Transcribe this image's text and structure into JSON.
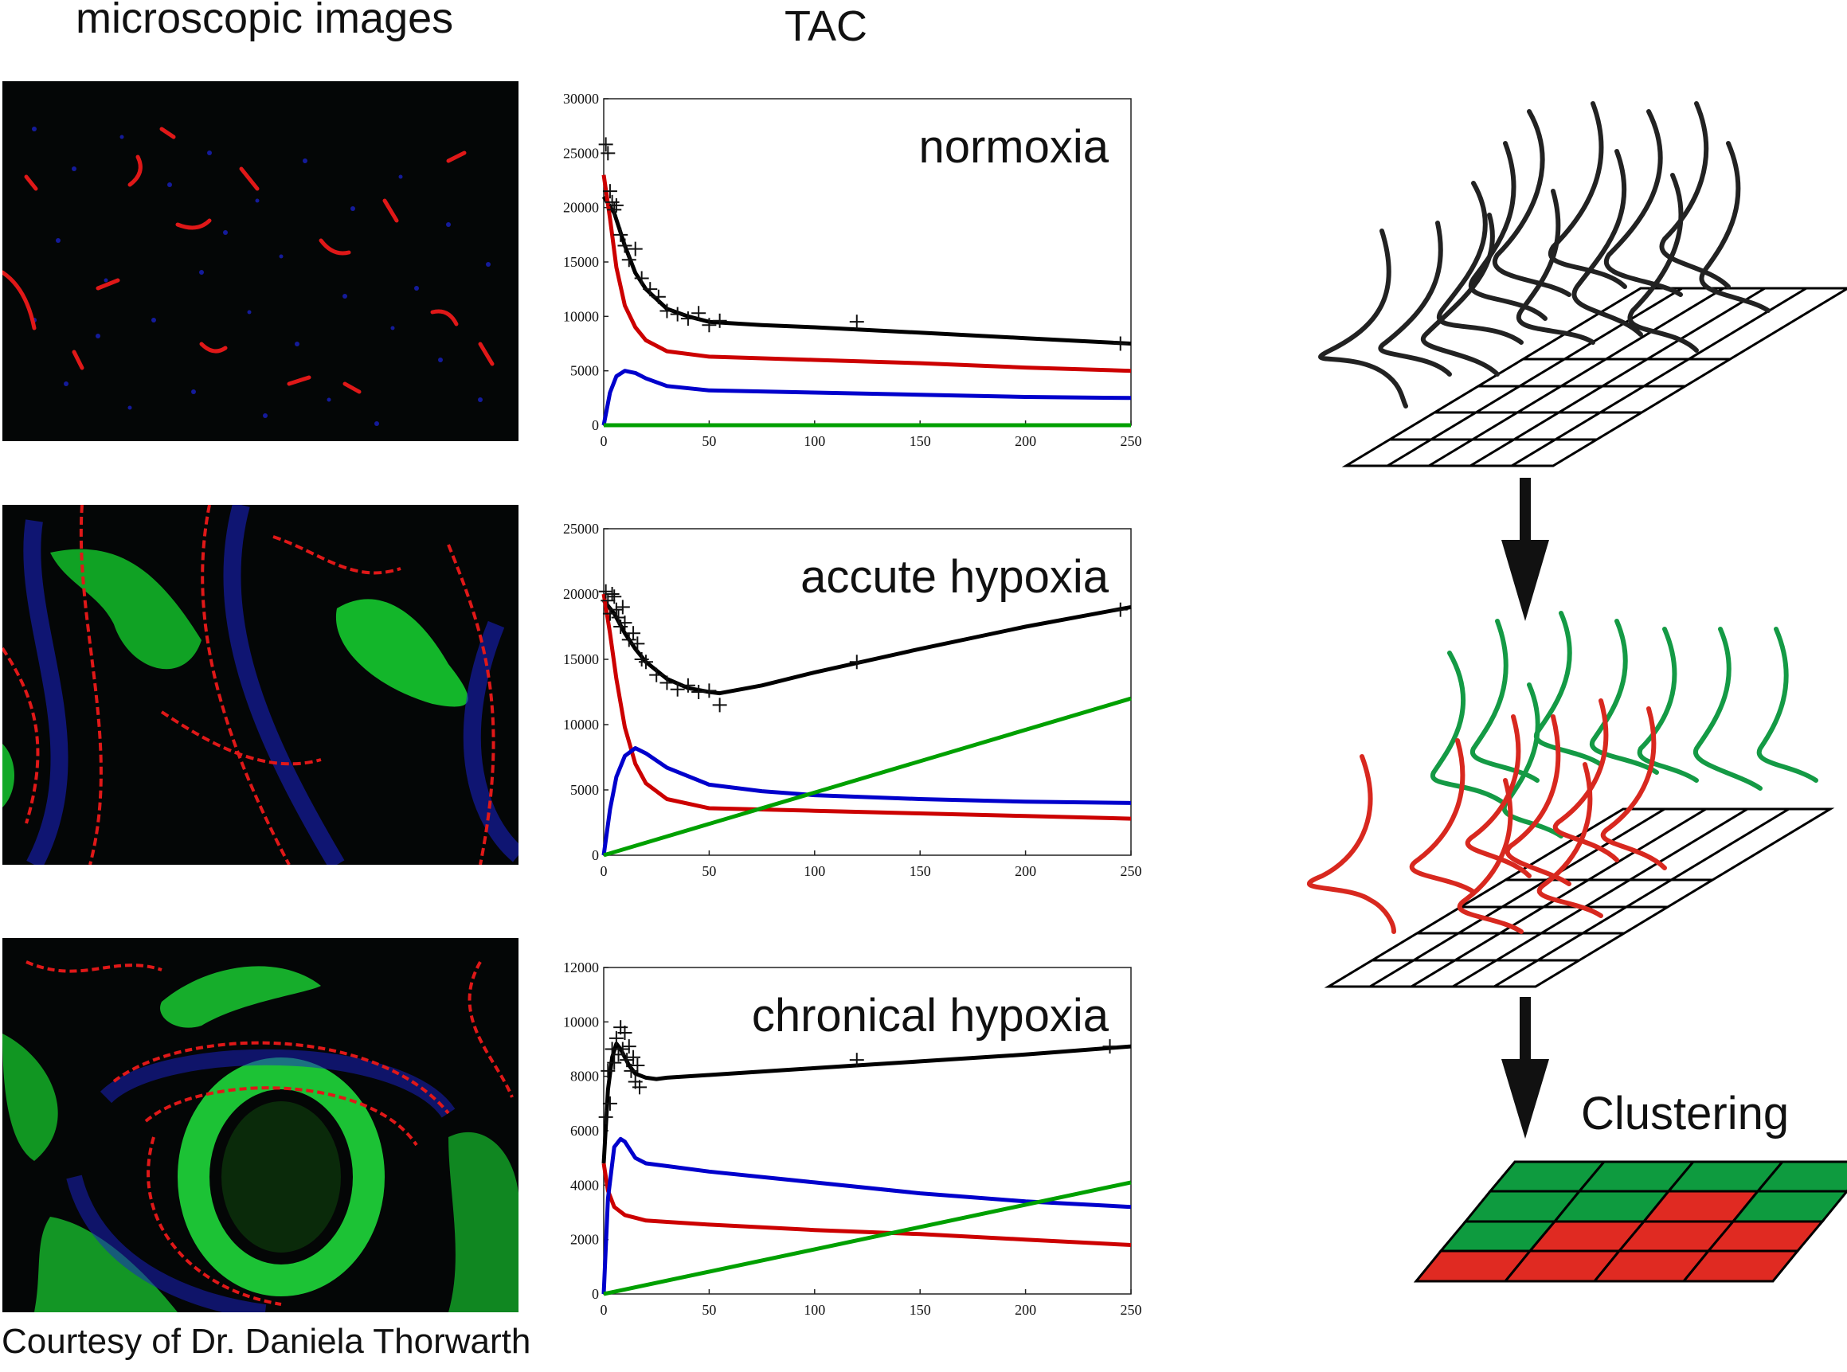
{
  "headings": {
    "microscopic": "microscopic images",
    "tac": "TAC"
  },
  "credit": "Courtesy of Dr. Daniela Thorwarth",
  "pipeline": {
    "step_label": "Clustering",
    "arrow_icon": "arrow-down-icon"
  },
  "colors": {
    "measured": "#000000",
    "red_series": "#cc0000",
    "blue_series": "#0000cc",
    "green_series": "#00a000",
    "cluster_green": "#0e9b3f",
    "cluster_red": "#e02a22"
  },
  "chart_data": [
    {
      "type": "line",
      "title": "normoxia",
      "xlabel": "",
      "ylabel": "",
      "xlim": [
        0,
        250
      ],
      "ylim": [
        0,
        30000
      ],
      "x_ticks": [
        "0",
        "50",
        "100",
        "150",
        "200",
        "250"
      ],
      "y_ticks": [
        "0",
        "5000",
        "10000",
        "15000",
        "20000",
        "25000",
        "30000"
      ],
      "grid": false,
      "legend": "none",
      "series": [
        {
          "color": "#000000",
          "x": [
            0,
            5,
            10,
            15,
            20,
            30,
            40,
            50,
            75,
            100,
            150,
            200,
            250
          ],
          "values": [
            21000,
            19500,
            16500,
            14000,
            12500,
            10700,
            10000,
            9500,
            9200,
            9000,
            8500,
            8000,
            7500
          ]
        },
        {
          "color": "#cc0000",
          "x": [
            0,
            3,
            6,
            10,
            15,
            20,
            30,
            50,
            100,
            150,
            200,
            250
          ],
          "values": [
            23000,
            19000,
            14500,
            11000,
            9000,
            7800,
            6800,
            6300,
            6000,
            5700,
            5300,
            5000
          ]
        },
        {
          "color": "#0000cc",
          "x": [
            0,
            3,
            6,
            10,
            15,
            20,
            30,
            50,
            100,
            150,
            200,
            250
          ],
          "values": [
            0,
            3000,
            4500,
            5000,
            4800,
            4300,
            3600,
            3200,
            3000,
            2800,
            2600,
            2500
          ]
        },
        {
          "color": "#00a000",
          "x": [
            0,
            250
          ],
          "values": [
            0,
            0
          ]
        }
      ],
      "measured_points": {
        "x": [
          1,
          2,
          3,
          4,
          5,
          6,
          8,
          10,
          12,
          15,
          18,
          22,
          26,
          30,
          35,
          40,
          45,
          50,
          55,
          120,
          245
        ],
        "values": [
          25800,
          25000,
          21500,
          20500,
          19800,
          20200,
          17500,
          16500,
          15200,
          16200,
          13500,
          12500,
          11800,
          10500,
          10200,
          9800,
          10300,
          9200,
          9600,
          9500,
          7500
        ]
      }
    },
    {
      "type": "line",
      "title": "accute hypoxia",
      "xlabel": "",
      "ylabel": "",
      "xlim": [
        0,
        250
      ],
      "ylim": [
        0,
        25000
      ],
      "x_ticks": [
        "0",
        "50",
        "100",
        "150",
        "200",
        "250"
      ],
      "y_ticks": [
        "0",
        "5000",
        "10000",
        "15000",
        "20000",
        "25000"
      ],
      "grid": false,
      "legend": "none",
      "series": [
        {
          "color": "#000000",
          "x": [
            0,
            5,
            10,
            15,
            20,
            30,
            40,
            50,
            55,
            75,
            100,
            150,
            200,
            250
          ],
          "values": [
            19500,
            18500,
            17000,
            15800,
            14800,
            13500,
            12800,
            12500,
            12400,
            13000,
            14000,
            15800,
            17500,
            19000
          ]
        },
        {
          "color": "#cc0000",
          "x": [
            0,
            3,
            6,
            10,
            15,
            20,
            30,
            50,
            100,
            150,
            200,
            250
          ],
          "values": [
            20000,
            17000,
            13500,
            9800,
            7000,
            5500,
            4300,
            3600,
            3400,
            3200,
            3000,
            2800
          ]
        },
        {
          "color": "#0000cc",
          "x": [
            0,
            3,
            6,
            10,
            15,
            20,
            30,
            50,
            75,
            100,
            150,
            200,
            250
          ],
          "values": [
            0,
            3500,
            6000,
            7600,
            8200,
            7800,
            6700,
            5400,
            4900,
            4600,
            4300,
            4100,
            4000
          ]
        },
        {
          "color": "#00a000",
          "x": [
            0,
            250
          ],
          "values": [
            0,
            12000
          ]
        }
      ],
      "measured_points": {
        "x": [
          1,
          2,
          3,
          4,
          5,
          6,
          7,
          8,
          9,
          10,
          12,
          14,
          16,
          18,
          20,
          25,
          30,
          35,
          40,
          45,
          50,
          55,
          120,
          245
        ],
        "values": [
          20200,
          19500,
          18500,
          20000,
          19800,
          18800,
          18200,
          17500,
          19000,
          17800,
          16500,
          17000,
          16200,
          15000,
          14800,
          13800,
          13200,
          12700,
          13000,
          12500,
          12600,
          11500,
          14800,
          18800
        ]
      }
    },
    {
      "type": "line",
      "title": "chronical hypoxia",
      "xlabel": "",
      "ylabel": "",
      "xlim": [
        0,
        250
      ],
      "ylim": [
        0,
        12000
      ],
      "x_ticks": [
        "0",
        "50",
        "100",
        "150",
        "200",
        "250"
      ],
      "y_ticks": [
        "0",
        "2000",
        "4000",
        "6000",
        "8000",
        "10000",
        "12000"
      ],
      "grid": false,
      "legend": "none",
      "series": [
        {
          "color": "#000000",
          "x": [
            0,
            2,
            4,
            6,
            8,
            10,
            12,
            15,
            20,
            25,
            30,
            50,
            100,
            150,
            200,
            250
          ],
          "values": [
            4800,
            7500,
            8700,
            9200,
            9000,
            8700,
            8400,
            8100,
            7950,
            7900,
            7950,
            8050,
            8300,
            8550,
            8800,
            9100
          ]
        },
        {
          "color": "#cc0000",
          "x": [
            0,
            2,
            5,
            10,
            15,
            20,
            30,
            50,
            100,
            150,
            200,
            250
          ],
          "values": [
            4800,
            3800,
            3200,
            2900,
            2800,
            2700,
            2650,
            2550,
            2350,
            2200,
            2000,
            1800
          ]
        },
        {
          "color": "#0000cc",
          "x": [
            0,
            2,
            5,
            8,
            10,
            15,
            20,
            30,
            50,
            100,
            150,
            200,
            250
          ],
          "values": [
            0,
            3500,
            5400,
            5700,
            5600,
            5000,
            4800,
            4700,
            4500,
            4100,
            3700,
            3400,
            3200
          ]
        },
        {
          "color": "#00a000",
          "x": [
            0,
            250
          ],
          "values": [
            0,
            4100
          ]
        }
      ],
      "measured_points": {
        "x": [
          1,
          2,
          3,
          4,
          5,
          6,
          7,
          8,
          9,
          10,
          11,
          12,
          13,
          14,
          15,
          16,
          17,
          120,
          240
        ],
        "values": [
          6500,
          8200,
          7000,
          9000,
          8500,
          9400,
          8800,
          9800,
          9000,
          9600,
          8600,
          9100,
          8200,
          8700,
          7800,
          8400,
          7600,
          8600,
          9100
        ]
      }
    }
  ]
}
